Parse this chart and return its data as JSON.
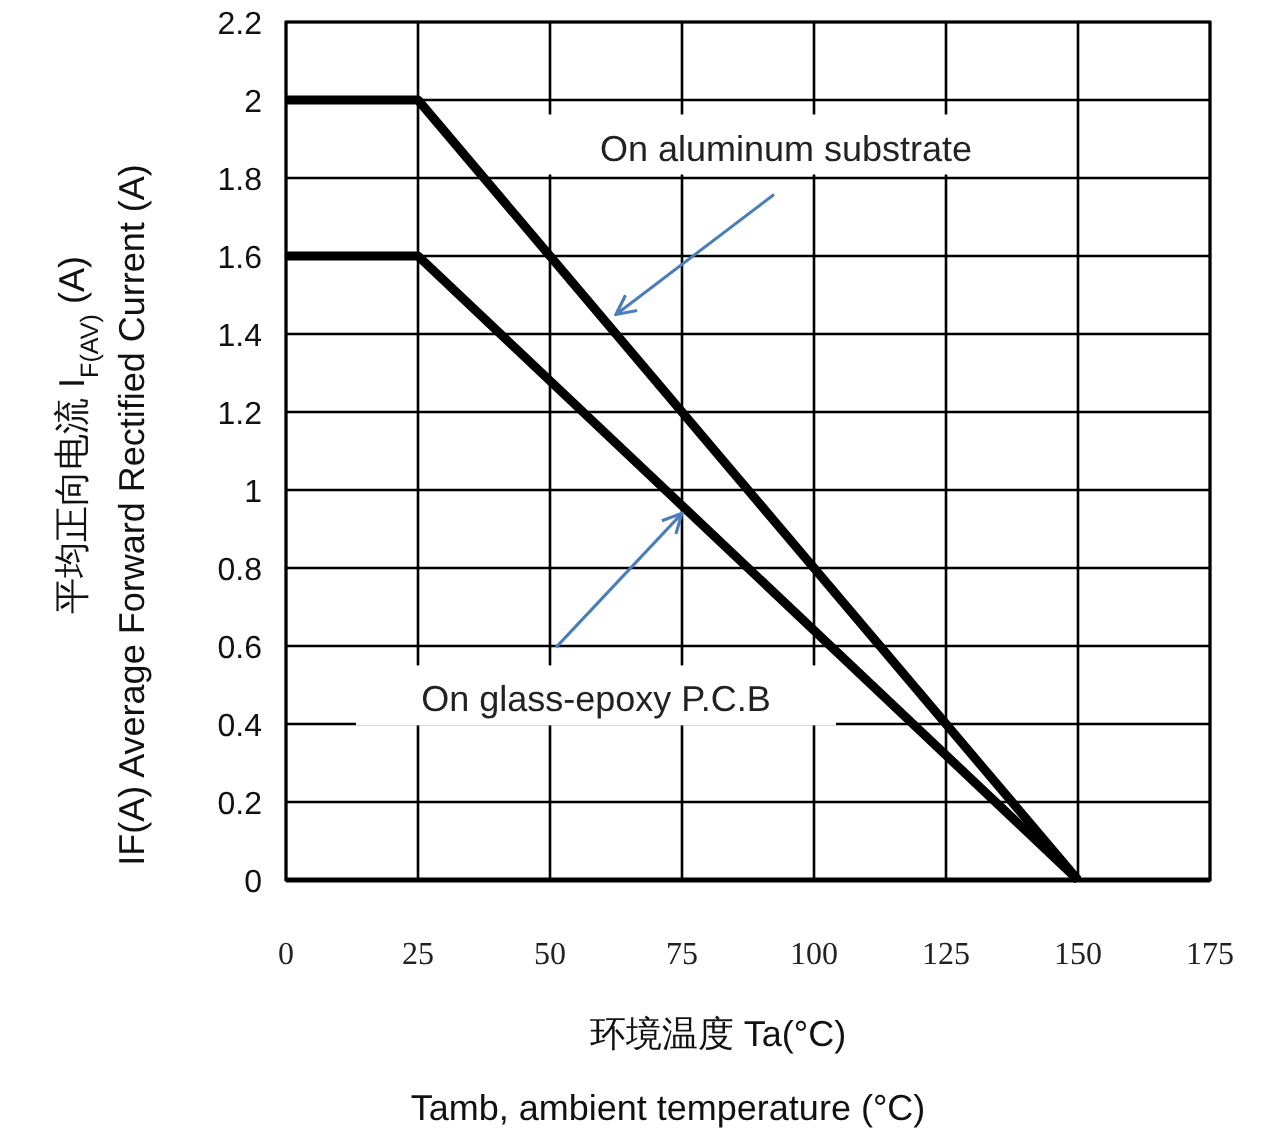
{
  "chart_data": {
    "type": "line",
    "x": [
      0,
      25,
      150
    ],
    "series": [
      {
        "color": "#000000",
        "values": [
          2,
          2,
          0
        ]
      },
      {
        "color": "#000000",
        "values": [
          1.6,
          1.6,
          0
        ]
      }
    ],
    "xlim": [
      0,
      175
    ],
    "xticks": [
      0,
      25,
      50,
      75,
      100,
      125,
      150,
      175
    ],
    "ylim": [
      0,
      2.2
    ],
    "yticks": [
      0,
      0.2,
      0.4,
      0.6,
      0.8,
      1,
      1.2,
      1.4,
      1.6,
      1.8,
      2,
      2.2
    ],
    "grid": true,
    "xlabel": "环境温度 Ta(°C)\nTamb, ambient temperature (°C)",
    "ylabel": "平均正向电流    I$_{F(AV)}$ (A)\nIF(A)  Average Forward Rectified Current (A)",
    "annotations": [
      {
        "text": "On aluminum substrate",
        "x": 62.5,
        "y": 1.45
      },
      {
        "text": "On glass-epoxy P.C.B",
        "x": 75,
        "y": 0.94
      }
    ]
  }
}
